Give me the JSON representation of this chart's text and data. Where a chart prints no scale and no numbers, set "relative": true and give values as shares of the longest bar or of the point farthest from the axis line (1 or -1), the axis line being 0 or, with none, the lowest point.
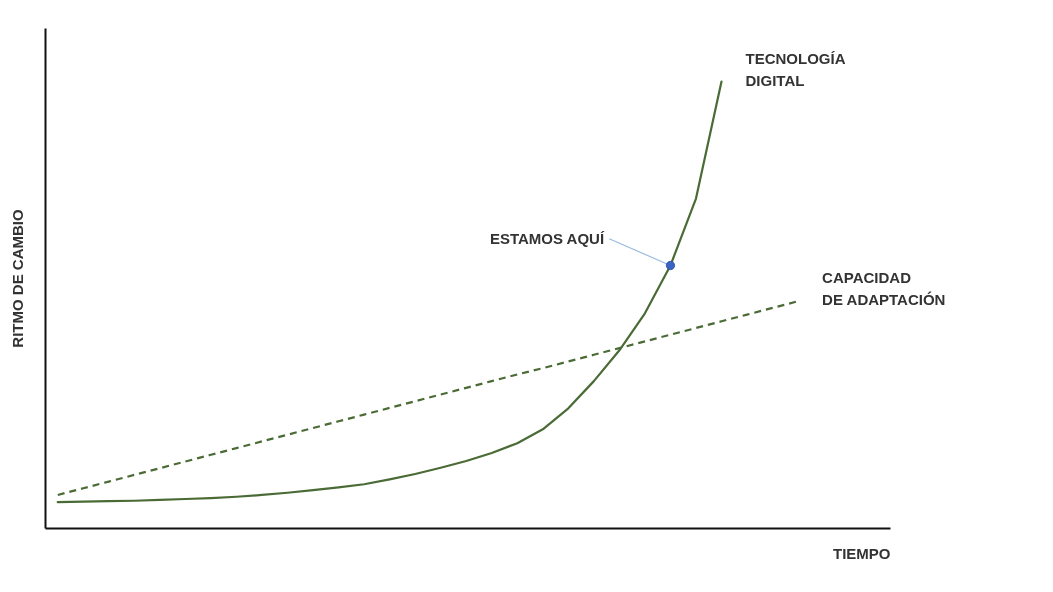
{
  "chart_data": {
    "type": "line",
    "xlabel": "TIEMPO",
    "ylabel": "RITMO DE CAMBIO",
    "relative": true,
    "grid": false,
    "legend": false,
    "categories": [
      null,
      null,
      null,
      null,
      null,
      null,
      null,
      null,
      null,
      null,
      null,
      null,
      null,
      null,
      null,
      null,
      null,
      null,
      null,
      null,
      null,
      null,
      null,
      null,
      null,
      null,
      null,
      null,
      null,
      null
    ],
    "series": [
      {
        "name": "TECNOLOGÍA DIGITAL",
        "color": "#4a6b35",
        "line_style": "solid",
        "values": [
          0.058,
          0.059,
          0.06,
          0.061,
          0.063,
          0.065,
          0.067,
          0.07,
          0.074,
          0.079,
          0.085,
          0.091,
          0.098,
          0.109,
          0.121,
          0.135,
          0.15,
          0.168,
          0.19,
          0.221,
          0.268,
          0.329,
          0.398,
          0.481,
          0.588,
          0.738,
          1.0,
          null,
          null,
          null
        ]
      },
      {
        "name": "CAPACIDAD DE ADAPTACIÓN",
        "color": "#4a6b35",
        "line_style": "dashed",
        "values": [
          0.074,
          0.089,
          0.104,
          0.119,
          0.134,
          0.149,
          0.164,
          0.179,
          0.194,
          0.209,
          0.224,
          0.239,
          0.254,
          0.269,
          0.284,
          0.299,
          0.314,
          0.329,
          0.344,
          0.358,
          0.373,
          0.388,
          0.403,
          0.418,
          0.433,
          0.448,
          0.463,
          0.478,
          0.493,
          0.508
        ]
      }
    ],
    "annotations": [
      "ESTAMOS AQUÍ"
    ]
  }
}
